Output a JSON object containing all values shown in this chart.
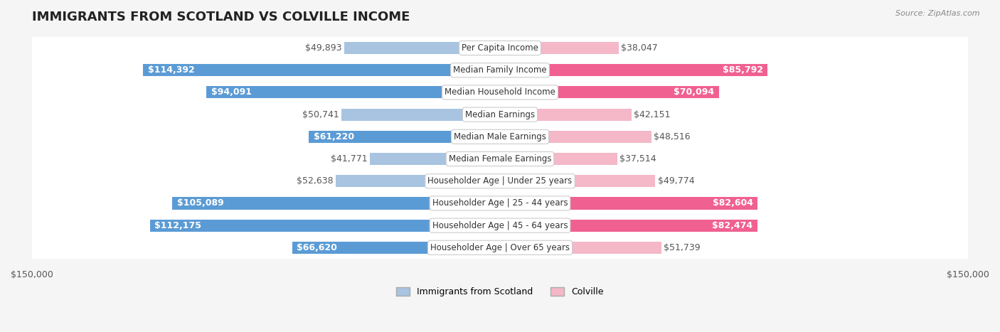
{
  "title": "IMMIGRANTS FROM SCOTLAND VS COLVILLE INCOME",
  "source": "Source: ZipAtlas.com",
  "categories": [
    "Per Capita Income",
    "Median Family Income",
    "Median Household Income",
    "Median Earnings",
    "Median Male Earnings",
    "Median Female Earnings",
    "Householder Age | Under 25 years",
    "Householder Age | 25 - 44 years",
    "Householder Age | 45 - 64 years",
    "Householder Age | Over 65 years"
  ],
  "scotland_values": [
    49893,
    114392,
    94091,
    50741,
    61220,
    41771,
    52638,
    105089,
    112175,
    66620
  ],
  "colville_values": [
    38047,
    85792,
    70094,
    42151,
    48516,
    37514,
    49774,
    82604,
    82474,
    51739
  ],
  "scotland_labels": [
    "$49,893",
    "$114,392",
    "$94,091",
    "$50,741",
    "$61,220",
    "$41,771",
    "$52,638",
    "$105,089",
    "$112,175",
    "$66,620"
  ],
  "colville_labels": [
    "$38,047",
    "$85,792",
    "$70,094",
    "$42,151",
    "$48,516",
    "$37,514",
    "$49,774",
    "$82,604",
    "$82,474",
    "$51,739"
  ],
  "scotland_color_light": "#a8c4e0",
  "scotland_color_dark": "#5b9bd5",
  "colville_color_light": "#f4b8c8",
  "colville_color_dark": "#f06090",
  "max_val": 150000,
  "xlabel_left": "$150,000",
  "xlabel_right": "$150,000",
  "legend_scotland": "Immigrants from Scotland",
  "legend_colville": "Colville",
  "bg_color": "#f5f5f5",
  "row_bg": "#ffffff",
  "label_fontsize": 9,
  "title_fontsize": 13
}
